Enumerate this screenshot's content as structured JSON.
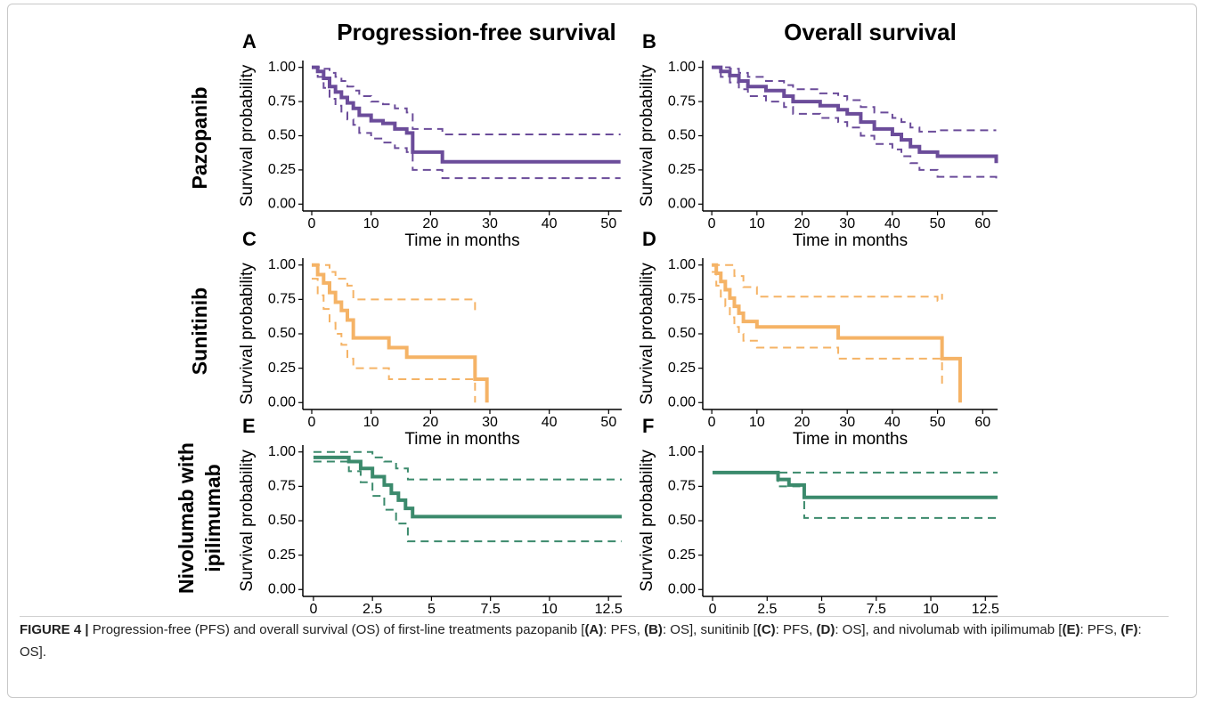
{
  "figure": {
    "column_titles": [
      "Progression-free survival",
      "Overall survival"
    ],
    "row_titles": [
      [
        "Pazopanib"
      ],
      [
        "Sunitinib"
      ],
      [
        "Nivolumab with",
        "ipilimumab"
      ]
    ],
    "caption": [
      {
        "text": "FIGURE 4 |",
        "bold": true
      },
      {
        "text": " Progression-free (PFS) and overall survival (OS) of first-line treatments pazopanib ["
      },
      {
        "text": "(A)",
        "bold": true
      },
      {
        "text": ": PFS, "
      },
      {
        "text": "(B)",
        "bold": true
      },
      {
        "text": ": OS], sunitinib ["
      },
      {
        "text": "(C)",
        "bold": true
      },
      {
        "text": ": PFS, "
      },
      {
        "text": "(D)",
        "bold": true
      },
      {
        "text": ": OS], and nivolumab with ipilimumab ["
      },
      {
        "text": "(E)",
        "bold": true
      },
      {
        "text": ": PFS, "
      },
      {
        "text": "(F)",
        "bold": true
      },
      {
        "text": ": OS]."
      }
    ]
  },
  "chart_data": [
    {
      "type": "step",
      "panel": "A",
      "xlabel": "Time in months",
      "ylabel": "Survival probability",
      "xlim": [
        -1.5,
        52.2
      ],
      "ylim": [
        -0.05,
        1.05
      ],
      "xticks": [
        0,
        10,
        20,
        30,
        40,
        50
      ],
      "yticks": [
        {
          "value": 0,
          "label": "0.00"
        },
        {
          "value": 0.25,
          "label": "0.25"
        },
        {
          "value": 0.5,
          "label": "0.50"
        },
        {
          "value": 0.75,
          "label": "0.75"
        },
        {
          "value": 1,
          "label": "1.00"
        }
      ],
      "series": [
        {
          "color": "#6b4c9a",
          "dashed": false,
          "x": [
            0,
            1,
            2,
            3,
            4,
            5,
            6,
            7,
            8,
            10,
            12,
            14,
            16,
            17,
            22,
            52
          ],
          "values": [
            1,
            0.97,
            0.92,
            0.86,
            0.82,
            0.78,
            0.74,
            0.7,
            0.65,
            0.61,
            0.59,
            0.55,
            0.52,
            0.38,
            0.31,
            0.31
          ]
        },
        {
          "color": "#6b4c9a",
          "dashed": true,
          "x": [
            0,
            1,
            2,
            3,
            4,
            5,
            6,
            7,
            8,
            10,
            12,
            14,
            16,
            17,
            22,
            52
          ],
          "values": [
            1,
            1,
            0.99,
            0.96,
            0.93,
            0.9,
            0.86,
            0.83,
            0.79,
            0.75,
            0.73,
            0.7,
            0.67,
            0.55,
            0.51,
            0.51
          ]
        },
        {
          "color": "#6b4c9a",
          "dashed": true,
          "x": [
            0,
            1,
            2,
            3,
            4,
            5,
            6,
            7,
            8,
            10,
            12,
            14,
            16,
            17,
            22,
            52
          ],
          "values": [
            1,
            0.93,
            0.85,
            0.77,
            0.72,
            0.67,
            0.62,
            0.58,
            0.52,
            0.48,
            0.45,
            0.41,
            0.38,
            0.25,
            0.19,
            0.19
          ]
        }
      ]
    },
    {
      "type": "step",
      "panel": "B",
      "xlabel": "Time in months",
      "ylabel": "Survival probability",
      "xlim": [
        -2,
        63.3
      ],
      "ylim": [
        -0.05,
        1.05
      ],
      "xticks": [
        0,
        10,
        20,
        30,
        40,
        50,
        60
      ],
      "yticks": [
        {
          "value": 0,
          "label": "0.00"
        },
        {
          "value": 0.25,
          "label": "0.25"
        },
        {
          "value": 0.5,
          "label": "0.50"
        },
        {
          "value": 0.75,
          "label": "0.75"
        },
        {
          "value": 1,
          "label": "1.00"
        }
      ],
      "series": [
        {
          "color": "#6b4c9a",
          "dashed": false,
          "x": [
            0,
            2,
            4,
            6,
            8,
            12,
            16,
            18,
            24,
            28,
            30,
            33,
            36,
            40,
            42,
            44,
            46,
            50,
            63
          ],
          "values": [
            1,
            0.97,
            0.94,
            0.9,
            0.86,
            0.83,
            0.79,
            0.75,
            0.72,
            0.69,
            0.66,
            0.6,
            0.55,
            0.51,
            0.47,
            0.42,
            0.38,
            0.35,
            0.3
          ]
        },
        {
          "color": "#6b4c9a",
          "dashed": true,
          "x": [
            0,
            2,
            4,
            6,
            8,
            12,
            16,
            18,
            24,
            28,
            30,
            33,
            36,
            40,
            42,
            44,
            46,
            50,
            63
          ],
          "values": [
            1,
            1,
            0.99,
            0.96,
            0.93,
            0.9,
            0.87,
            0.84,
            0.81,
            0.79,
            0.76,
            0.71,
            0.67,
            0.63,
            0.6,
            0.56,
            0.53,
            0.54,
            0.54
          ]
        },
        {
          "color": "#6b4c9a",
          "dashed": true,
          "x": [
            0,
            2,
            4,
            6,
            8,
            12,
            16,
            18,
            24,
            28,
            30,
            33,
            36,
            40,
            42,
            44,
            46,
            50,
            63
          ],
          "values": [
            1,
            0.93,
            0.89,
            0.84,
            0.79,
            0.75,
            0.71,
            0.66,
            0.63,
            0.6,
            0.56,
            0.5,
            0.44,
            0.4,
            0.35,
            0.3,
            0.25,
            0.2,
            0.17
          ]
        }
      ]
    },
    {
      "type": "step",
      "panel": "C",
      "xlabel": "Time in months",
      "ylabel": "Survival probability",
      "xlim": [
        -1.5,
        52.2
      ],
      "ylim": [
        -0.05,
        1.05
      ],
      "xticks": [
        0,
        10,
        20,
        30,
        40,
        50
      ],
      "yticks": [
        {
          "value": 0,
          "label": "0.00"
        },
        {
          "value": 0.25,
          "label": "0.25"
        },
        {
          "value": 0.5,
          "label": "0.50"
        },
        {
          "value": 0.75,
          "label": "0.75"
        },
        {
          "value": 1,
          "label": "1.00"
        }
      ],
      "series": [
        {
          "color": "#f5b366",
          "dashed": false,
          "x": [
            0,
            1,
            2,
            3,
            4,
            5,
            6,
            7,
            13,
            16,
            27.5,
            29.5
          ],
          "values": [
            1,
            0.93,
            0.87,
            0.8,
            0.73,
            0.67,
            0.6,
            0.47,
            0.4,
            0.33,
            0.17,
            0
          ]
        },
        {
          "color": "#f5b366",
          "dashed": true,
          "x": [
            0,
            2,
            3,
            4,
            6,
            7,
            27.5
          ],
          "values": [
            1,
            1,
            0.95,
            0.9,
            0.85,
            0.75,
            0.65
          ]
        },
        {
          "color": "#f5b366",
          "dashed": true,
          "x": [
            0,
            1,
            2,
            3,
            4,
            5,
            6,
            7,
            13,
            16,
            27.5
          ],
          "values": [
            0.9,
            0.78,
            0.68,
            0.58,
            0.5,
            0.42,
            0.32,
            0.25,
            0.17,
            0.17,
            0
          ]
        }
      ]
    },
    {
      "type": "step",
      "panel": "D",
      "xlabel": "Time in months",
      "ylabel": "Survival probability",
      "xlim": [
        -2,
        63.3
      ],
      "ylim": [
        -0.05,
        1.05
      ],
      "xticks": [
        0,
        10,
        20,
        30,
        40,
        50,
        60
      ],
      "yticks": [
        {
          "value": 0,
          "label": "0.00"
        },
        {
          "value": 0.25,
          "label": "0.25"
        },
        {
          "value": 0.5,
          "label": "0.50"
        },
        {
          "value": 0.75,
          "label": "0.75"
        },
        {
          "value": 1,
          "label": "1.00"
        }
      ],
      "series": [
        {
          "color": "#f5b366",
          "dashed": false,
          "x": [
            0,
            1,
            2,
            3,
            4,
            5,
            6,
            7,
            10,
            28,
            51,
            55
          ],
          "values": [
            1,
            0.94,
            0.88,
            0.82,
            0.76,
            0.7,
            0.65,
            0.59,
            0.55,
            0.47,
            0.32,
            0
          ]
        },
        {
          "color": "#f5b366",
          "dashed": true,
          "x": [
            0,
            3,
            5,
            7,
            10,
            28,
            50,
            51
          ],
          "values": [
            1,
            1,
            0.92,
            0.84,
            0.77,
            0.77,
            0.74,
            0.79
          ]
        },
        {
          "color": "#f5b366",
          "dashed": true,
          "x": [
            0,
            1,
            2,
            3,
            4,
            5,
            6,
            7,
            10,
            28,
            51
          ],
          "values": [
            0.95,
            0.85,
            0.77,
            0.7,
            0.62,
            0.55,
            0.5,
            0.45,
            0.4,
            0.32,
            0.12
          ]
        }
      ]
    },
    {
      "type": "step",
      "panel": "E",
      "xlabel": "Time in months",
      "ylabel": "Survival probability",
      "xlim": [
        -0.45,
        13.06
      ],
      "ylim": [
        -0.05,
        1.05
      ],
      "xticks": [
        0,
        2.5,
        5,
        7.5,
        10,
        12.5
      ],
      "yticks": [
        {
          "value": 0,
          "label": "0.00"
        },
        {
          "value": 0.25,
          "label": "0.25"
        },
        {
          "value": 0.5,
          "label": "0.50"
        },
        {
          "value": 0.75,
          "label": "0.75"
        },
        {
          "value": 1,
          "label": "1.00"
        }
      ],
      "series": [
        {
          "color": "#3b8a6c",
          "dashed": false,
          "x": [
            0,
            1.5,
            2,
            2.5,
            3,
            3.3,
            3.6,
            3.9,
            4.2,
            13.06
          ],
          "values": [
            0.96,
            0.93,
            0.88,
            0.82,
            0.76,
            0.7,
            0.65,
            0.59,
            0.53,
            0.53
          ]
        },
        {
          "color": "#3b8a6c",
          "dashed": true,
          "x": [
            0,
            2,
            2.5,
            3,
            3.5,
            4,
            13.06
          ],
          "values": [
            1,
            1,
            0.96,
            0.93,
            0.88,
            0.8,
            0.8
          ]
        },
        {
          "color": "#3b8a6c",
          "dashed": true,
          "x": [
            0,
            1.5,
            2,
            2.5,
            3,
            3.5,
            4,
            13.06
          ],
          "values": [
            0.93,
            0.86,
            0.78,
            0.68,
            0.58,
            0.48,
            0.35,
            0.35
          ]
        }
      ]
    },
    {
      "type": "step",
      "panel": "F",
      "xlabel": "Time in months",
      "ylabel": "Survival probability",
      "xlim": [
        -0.45,
        13.06
      ],
      "ylim": [
        -0.05,
        1.05
      ],
      "xticks": [
        0,
        2.5,
        5,
        7.5,
        10,
        12.5
      ],
      "yticks": [
        {
          "value": 0,
          "label": "0.00"
        },
        {
          "value": 0.25,
          "label": "0.25"
        },
        {
          "value": 0.5,
          "label": "0.50"
        },
        {
          "value": 0.75,
          "label": "0.75"
        },
        {
          "value": 1,
          "label": "1.00"
        }
      ],
      "series": [
        {
          "color": "#3b8a6c",
          "dashed": false,
          "x": [
            0,
            3,
            3.5,
            4.2,
            13.06
          ],
          "values": [
            0.85,
            0.8,
            0.76,
            0.67,
            0.67
          ]
        },
        {
          "color": "#3b8a6c",
          "dashed": true,
          "x": [
            0,
            4.2,
            13.06
          ],
          "values": [
            0.85,
            0.85,
            0.85
          ]
        },
        {
          "color": "#3b8a6c",
          "dashed": true,
          "x": [
            0,
            3,
            4.2,
            13.06
          ],
          "values": [
            0.85,
            0.75,
            0.52,
            0.52
          ]
        }
      ]
    }
  ]
}
